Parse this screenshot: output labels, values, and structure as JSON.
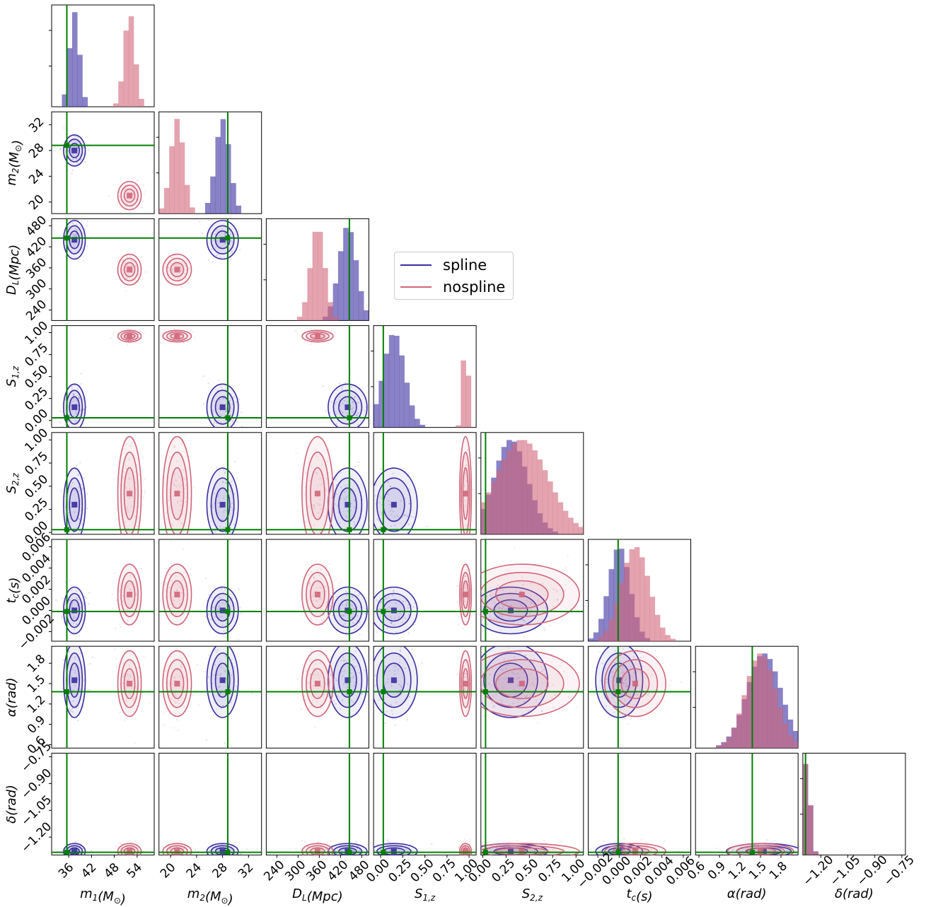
{
  "chart_data": {
    "type": "corner",
    "params": [
      {
        "label_html": "m<sub>1</sub>(M<sub>⊙</sub>)",
        "ticks": [
          "36",
          "42",
          "48",
          "54"
        ],
        "range": [
          31.5,
          58.5
        ],
        "truth": 35.5
      },
      {
        "label_html": "m<sub>2</sub>(M<sub>⊙</sub>)",
        "ticks": [
          "20",
          "24",
          "28",
          "32"
        ],
        "range": [
          18.2,
          34.0
        ],
        "truth": 28.8
      },
      {
        "label_html": "D<sub>L</sub>(Mpc)",
        "ticks": [
          "240",
          "300",
          "360",
          "420",
          "480"
        ],
        "range": [
          210,
          500
        ],
        "truth": 445
      },
      {
        "label_html": "S<sub>1,z</sub>",
        "ticks": [
          "0.00",
          "0.25",
          "0.50",
          "0.75",
          "1.00"
        ],
        "range": [
          -0.08,
          1.08
        ],
        "truth": 0.03
      },
      {
        "label_html": "S<sub>2,z</sub>",
        "ticks": [
          "0.00",
          "0.25",
          "0.50",
          "0.75",
          "1.00"
        ],
        "range": [
          -0.02,
          1.08
        ],
        "truth": 0.03
      },
      {
        "label_html": "t<sub>c</sub>(s)",
        "ticks": [
          "−0.002",
          "0.000",
          "0.002",
          "0.004",
          "0.006"
        ],
        "range": [
          -0.0029,
          0.0067
        ],
        "truth": -0.0001
      },
      {
        "label_html": "α(rad)",
        "ticks": [
          "0.6",
          "0.9",
          "1.2",
          "1.5",
          "1.8"
        ],
        "range": [
          0.55,
          2.05
        ],
        "truth": 1.38
      },
      {
        "label_html": "δ(rad)",
        "ticks": [
          "−1.20",
          "−1.05",
          "−0.90",
          "−0.75"
        ],
        "range": [
          -1.3,
          -0.73
        ],
        "truth": -1.285
      }
    ],
    "series": [
      {
        "name": "spline",
        "color": "#3a2ea0",
        "means": [
          37.5,
          28.0,
          440,
          0.15,
          0.3,
          0.0,
          1.55,
          -1.28
        ],
        "sds": [
          1.3,
          1.1,
          25,
          0.12,
          0.18,
          0.001,
          0.25,
          0.02
        ]
      },
      {
        "name": "nospline",
        "color": "#d0667a",
        "means": [
          52.0,
          21.0,
          355,
          0.96,
          0.42,
          0.0015,
          1.5,
          -1.28
        ],
        "sds": [
          1.4,
          1.0,
          20,
          0.03,
          0.28,
          0.0013,
          0.22,
          0.02
        ]
      }
    ],
    "truth_color": "#008000",
    "legend": {
      "placement": "upper-right"
    }
  }
}
